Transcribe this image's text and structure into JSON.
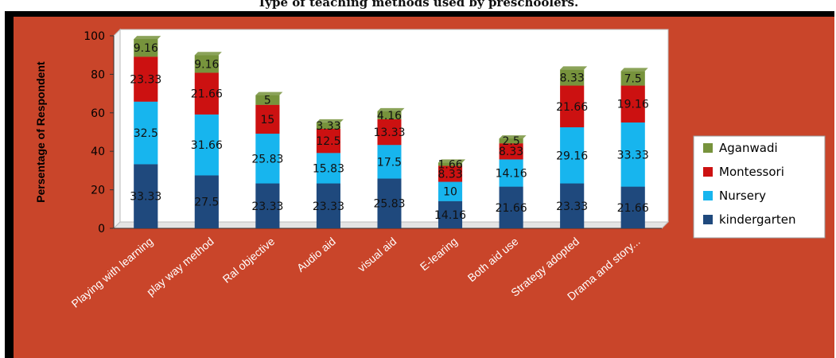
{
  "chart_data": {
    "type": "bar",
    "stacked": true,
    "title": "Type of teaching methods  used  by preschoolers.",
    "ylabel": "Persentage of Respondent",
    "xlabel": "",
    "ylim": [
      0,
      100
    ],
    "yticks": [
      0,
      20,
      40,
      60,
      80,
      100
    ],
    "categories": [
      "Playing with learning",
      "play way method",
      "Ral objective",
      "Audio aid",
      "visual aid",
      "E-learing",
      "Both aid use",
      "Strategy adopted",
      "Drama and story..."
    ],
    "series": [
      {
        "name": "kindergarten",
        "color": "#1f497d",
        "values": [
          33.33,
          27.5,
          23.33,
          23.33,
          25.83,
          14.16,
          21.66,
          23.33,
          21.66
        ]
      },
      {
        "name": "Nursery",
        "color": "#17b5ee",
        "values": [
          32.5,
          31.66,
          25.83,
          15.83,
          17.5,
          10,
          14.16,
          29.16,
          33.33
        ]
      },
      {
        "name": "Montessori",
        "color": "#cc1111",
        "values": [
          23.33,
          21.66,
          15,
          12.5,
          13.33,
          8.33,
          8.33,
          21.66,
          19.16
        ]
      },
      {
        "name": "Aganwadi",
        "color": "#77933c",
        "values": [
          9.16,
          9.16,
          5,
          3.33,
          4.16,
          1.66,
          2.5,
          8.33,
          7.5
        ]
      }
    ],
    "legend_position": "right",
    "grid": false,
    "background_color": "#c9452a"
  }
}
